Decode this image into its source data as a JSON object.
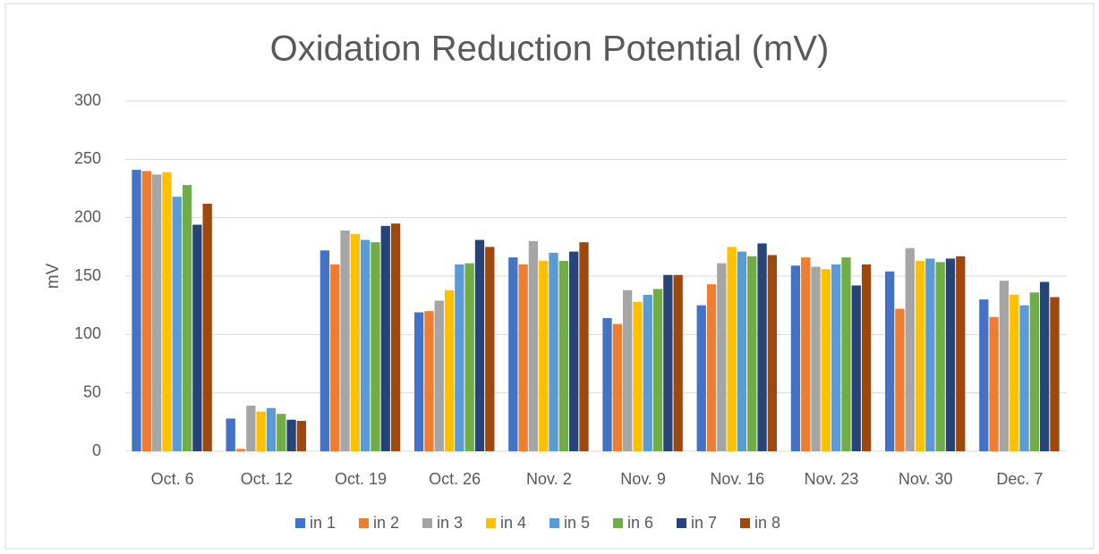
{
  "chart_data": {
    "type": "bar",
    "title": "Oxidation Reduction Potential (mV)",
    "y_label": "mV",
    "categories": [
      "Oct. 6",
      "Oct. 12",
      "Oct. 19",
      "Oct. 26",
      "Nov. 2",
      "Nov. 9",
      "Nov. 16",
      "Nov. 23",
      "Nov. 30",
      "Dec. 7"
    ],
    "series": [
      {
        "name": "in 1",
        "color": "#4472c4",
        "values": [
          241,
          28,
          172,
          119,
          166,
          114,
          125,
          159,
          154,
          130
        ]
      },
      {
        "name": "in 2",
        "color": "#ed7d31",
        "values": [
          240,
          2,
          160,
          120,
          160,
          109,
          143,
          166,
          122,
          115
        ]
      },
      {
        "name": "in 3",
        "color": "#a5a5a5",
        "values": [
          237,
          39,
          189,
          129,
          180,
          138,
          161,
          158,
          174,
          146
        ]
      },
      {
        "name": "in 4",
        "color": "#ffc000",
        "values": [
          239,
          34,
          186,
          138,
          163,
          128,
          175,
          156,
          163,
          134
        ]
      },
      {
        "name": "in 5",
        "color": "#5b9bd5",
        "values": [
          218,
          37,
          181,
          160,
          170,
          134,
          171,
          160,
          165,
          125
        ]
      },
      {
        "name": "in 6",
        "color": "#70ad47",
        "values": [
          228,
          32,
          179,
          161,
          163,
          139,
          167,
          166,
          162,
          136
        ]
      },
      {
        "name": "in 7",
        "color": "#264478",
        "values": [
          194,
          27,
          193,
          181,
          171,
          151,
          178,
          142,
          165,
          145
        ]
      },
      {
        "name": "in 8",
        "color": "#9e480e",
        "values": [
          212,
          26,
          195,
          175,
          179,
          151,
          168,
          160,
          167,
          132
        ]
      }
    ],
    "ylim": [
      0,
      300
    ],
    "yticks": [
      0,
      50,
      100,
      150,
      200,
      250,
      300
    ],
    "grid": true,
    "legend": "bottom"
  }
}
